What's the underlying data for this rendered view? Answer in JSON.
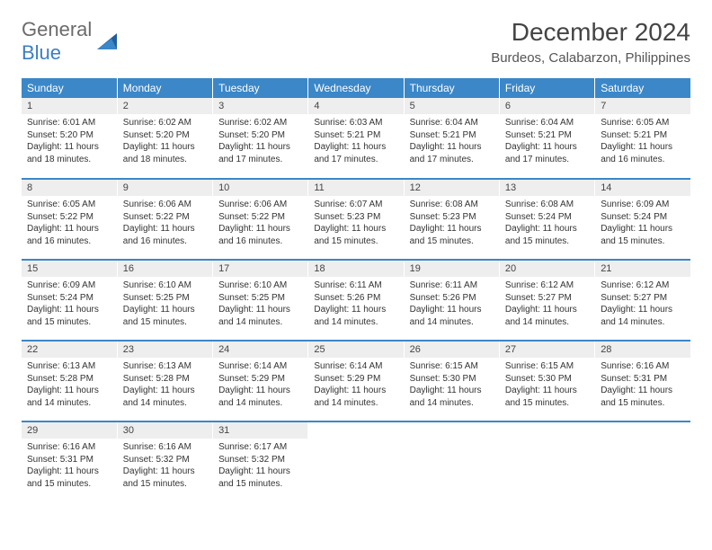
{
  "brand": {
    "word1": "General",
    "word2": "Blue"
  },
  "title": "December 2024",
  "location": "Burdeos, Calabarzon, Philippines",
  "colors": {
    "header_bg": "#3b87c8",
    "header_text": "#ffffff",
    "daynum_bg": "#eeeeee",
    "row_border": "#3b87c8",
    "logo_gray": "#6b6b6b",
    "logo_blue": "#3b7fc4"
  },
  "weekdays": [
    "Sunday",
    "Monday",
    "Tuesday",
    "Wednesday",
    "Thursday",
    "Friday",
    "Saturday"
  ],
  "weeks": [
    [
      {
        "n": "1",
        "sr": "Sunrise: 6:01 AM",
        "ss": "Sunset: 5:20 PM",
        "d1": "Daylight: 11 hours",
        "d2": "and 18 minutes."
      },
      {
        "n": "2",
        "sr": "Sunrise: 6:02 AM",
        "ss": "Sunset: 5:20 PM",
        "d1": "Daylight: 11 hours",
        "d2": "and 18 minutes."
      },
      {
        "n": "3",
        "sr": "Sunrise: 6:02 AM",
        "ss": "Sunset: 5:20 PM",
        "d1": "Daylight: 11 hours",
        "d2": "and 17 minutes."
      },
      {
        "n": "4",
        "sr": "Sunrise: 6:03 AM",
        "ss": "Sunset: 5:21 PM",
        "d1": "Daylight: 11 hours",
        "d2": "and 17 minutes."
      },
      {
        "n": "5",
        "sr": "Sunrise: 6:04 AM",
        "ss": "Sunset: 5:21 PM",
        "d1": "Daylight: 11 hours",
        "d2": "and 17 minutes."
      },
      {
        "n": "6",
        "sr": "Sunrise: 6:04 AM",
        "ss": "Sunset: 5:21 PM",
        "d1": "Daylight: 11 hours",
        "d2": "and 17 minutes."
      },
      {
        "n": "7",
        "sr": "Sunrise: 6:05 AM",
        "ss": "Sunset: 5:21 PM",
        "d1": "Daylight: 11 hours",
        "d2": "and 16 minutes."
      }
    ],
    [
      {
        "n": "8",
        "sr": "Sunrise: 6:05 AM",
        "ss": "Sunset: 5:22 PM",
        "d1": "Daylight: 11 hours",
        "d2": "and 16 minutes."
      },
      {
        "n": "9",
        "sr": "Sunrise: 6:06 AM",
        "ss": "Sunset: 5:22 PM",
        "d1": "Daylight: 11 hours",
        "d2": "and 16 minutes."
      },
      {
        "n": "10",
        "sr": "Sunrise: 6:06 AM",
        "ss": "Sunset: 5:22 PM",
        "d1": "Daylight: 11 hours",
        "d2": "and 16 minutes."
      },
      {
        "n": "11",
        "sr": "Sunrise: 6:07 AM",
        "ss": "Sunset: 5:23 PM",
        "d1": "Daylight: 11 hours",
        "d2": "and 15 minutes."
      },
      {
        "n": "12",
        "sr": "Sunrise: 6:08 AM",
        "ss": "Sunset: 5:23 PM",
        "d1": "Daylight: 11 hours",
        "d2": "and 15 minutes."
      },
      {
        "n": "13",
        "sr": "Sunrise: 6:08 AM",
        "ss": "Sunset: 5:24 PM",
        "d1": "Daylight: 11 hours",
        "d2": "and 15 minutes."
      },
      {
        "n": "14",
        "sr": "Sunrise: 6:09 AM",
        "ss": "Sunset: 5:24 PM",
        "d1": "Daylight: 11 hours",
        "d2": "and 15 minutes."
      }
    ],
    [
      {
        "n": "15",
        "sr": "Sunrise: 6:09 AM",
        "ss": "Sunset: 5:24 PM",
        "d1": "Daylight: 11 hours",
        "d2": "and 15 minutes."
      },
      {
        "n": "16",
        "sr": "Sunrise: 6:10 AM",
        "ss": "Sunset: 5:25 PM",
        "d1": "Daylight: 11 hours",
        "d2": "and 15 minutes."
      },
      {
        "n": "17",
        "sr": "Sunrise: 6:10 AM",
        "ss": "Sunset: 5:25 PM",
        "d1": "Daylight: 11 hours",
        "d2": "and 14 minutes."
      },
      {
        "n": "18",
        "sr": "Sunrise: 6:11 AM",
        "ss": "Sunset: 5:26 PM",
        "d1": "Daylight: 11 hours",
        "d2": "and 14 minutes."
      },
      {
        "n": "19",
        "sr": "Sunrise: 6:11 AM",
        "ss": "Sunset: 5:26 PM",
        "d1": "Daylight: 11 hours",
        "d2": "and 14 minutes."
      },
      {
        "n": "20",
        "sr": "Sunrise: 6:12 AM",
        "ss": "Sunset: 5:27 PM",
        "d1": "Daylight: 11 hours",
        "d2": "and 14 minutes."
      },
      {
        "n": "21",
        "sr": "Sunrise: 6:12 AM",
        "ss": "Sunset: 5:27 PM",
        "d1": "Daylight: 11 hours",
        "d2": "and 14 minutes."
      }
    ],
    [
      {
        "n": "22",
        "sr": "Sunrise: 6:13 AM",
        "ss": "Sunset: 5:28 PM",
        "d1": "Daylight: 11 hours",
        "d2": "and 14 minutes."
      },
      {
        "n": "23",
        "sr": "Sunrise: 6:13 AM",
        "ss": "Sunset: 5:28 PM",
        "d1": "Daylight: 11 hours",
        "d2": "and 14 minutes."
      },
      {
        "n": "24",
        "sr": "Sunrise: 6:14 AM",
        "ss": "Sunset: 5:29 PM",
        "d1": "Daylight: 11 hours",
        "d2": "and 14 minutes."
      },
      {
        "n": "25",
        "sr": "Sunrise: 6:14 AM",
        "ss": "Sunset: 5:29 PM",
        "d1": "Daylight: 11 hours",
        "d2": "and 14 minutes."
      },
      {
        "n": "26",
        "sr": "Sunrise: 6:15 AM",
        "ss": "Sunset: 5:30 PM",
        "d1": "Daylight: 11 hours",
        "d2": "and 14 minutes."
      },
      {
        "n": "27",
        "sr": "Sunrise: 6:15 AM",
        "ss": "Sunset: 5:30 PM",
        "d1": "Daylight: 11 hours",
        "d2": "and 15 minutes."
      },
      {
        "n": "28",
        "sr": "Sunrise: 6:16 AM",
        "ss": "Sunset: 5:31 PM",
        "d1": "Daylight: 11 hours",
        "d2": "and 15 minutes."
      }
    ],
    [
      {
        "n": "29",
        "sr": "Sunrise: 6:16 AM",
        "ss": "Sunset: 5:31 PM",
        "d1": "Daylight: 11 hours",
        "d2": "and 15 minutes."
      },
      {
        "n": "30",
        "sr": "Sunrise: 6:16 AM",
        "ss": "Sunset: 5:32 PM",
        "d1": "Daylight: 11 hours",
        "d2": "and 15 minutes."
      },
      {
        "n": "31",
        "sr": "Sunrise: 6:17 AM",
        "ss": "Sunset: 5:32 PM",
        "d1": "Daylight: 11 hours",
        "d2": "and 15 minutes."
      },
      null,
      null,
      null,
      null
    ]
  ]
}
